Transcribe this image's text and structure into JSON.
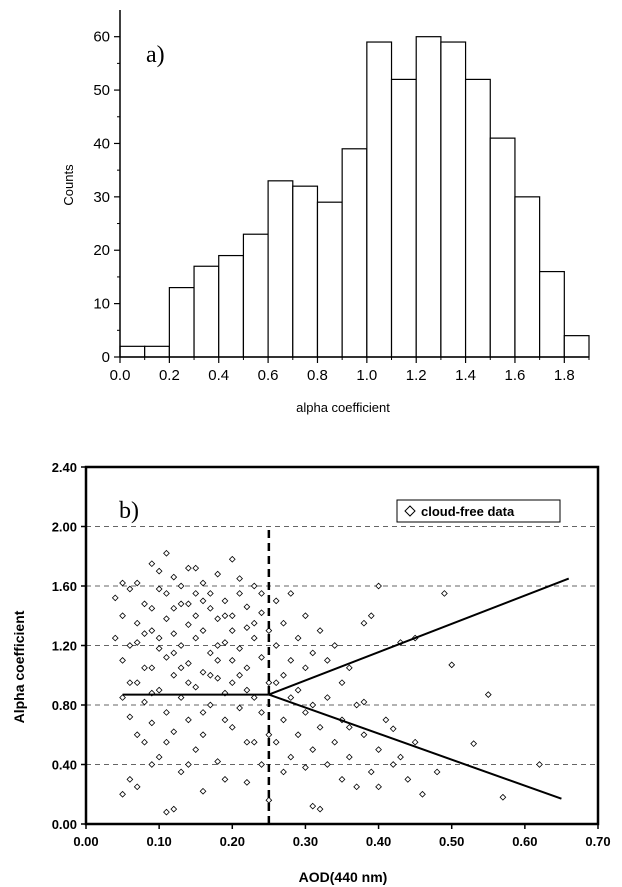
{
  "chart_data": [
    {
      "type": "bar",
      "panel_label": "a)",
      "xlabel": "alpha coefficient",
      "ylabel": "Counts",
      "xlim": [
        0.0,
        1.9
      ],
      "ylim": [
        0,
        65
      ],
      "bin_width": 0.1,
      "xticks": [
        0.0,
        0.2,
        0.4,
        0.6,
        0.8,
        1.0,
        1.2,
        1.4,
        1.6,
        1.8
      ],
      "xtick_labels": [
        "0.0",
        "0.2",
        "0.4",
        "0.6",
        "0.8",
        "1.0",
        "1.2",
        "1.4",
        "1.6",
        "1.8"
      ],
      "yticks": [
        0,
        10,
        20,
        30,
        40,
        50,
        60
      ],
      "ytick_labels": [
        "0",
        "10",
        "20",
        "30",
        "40",
        "50",
        "60"
      ],
      "bins_start": [
        0.0,
        0.1,
        0.2,
        0.3,
        0.4,
        0.5,
        0.6,
        0.7,
        0.8,
        0.9,
        1.0,
        1.1,
        1.2,
        1.3,
        1.4,
        1.5,
        1.6,
        1.7,
        1.8
      ],
      "values": [
        2,
        2,
        13,
        17,
        19,
        23,
        33,
        32,
        29,
        39,
        59,
        52,
        60,
        59,
        52,
        41,
        30,
        16,
        4
      ]
    },
    {
      "type": "scatter",
      "panel_label": "b)",
      "xlabel": "AOD(440 nm)",
      "ylabel": "Alpha coefficient",
      "xlim": [
        0.0,
        0.7
      ],
      "ylim": [
        0.0,
        2.4
      ],
      "grid": "horizontal dashed",
      "xticks": [
        0.0,
        0.1,
        0.2,
        0.3,
        0.4,
        0.5,
        0.6,
        0.7
      ],
      "xtick_labels": [
        "0.00",
        "0.10",
        "0.20",
        "0.30",
        "0.40",
        "0.50",
        "0.60",
        "0.70"
      ],
      "yticks": [
        0.0,
        0.4,
        0.8,
        1.2,
        1.6,
        2.0,
        2.4
      ],
      "ytick_labels": [
        "0.00",
        "0.40",
        "0.80",
        "1.20",
        "1.60",
        "2.00",
        "2.40"
      ],
      "legend": {
        "label": "cloud-free data",
        "position": "top-right"
      },
      "series": [
        {
          "name": "cloud-free data",
          "marker": "diamond-open",
          "points": [
            [
              0.04,
              1.52
            ],
            [
              0.05,
              1.4
            ],
            [
              0.05,
              1.1
            ],
            [
              0.06,
              0.95
            ],
            [
              0.06,
              0.72
            ],
            [
              0.07,
              1.62
            ],
            [
              0.07,
              1.35
            ],
            [
              0.07,
              1.22
            ],
            [
              0.08,
              1.05
            ],
            [
              0.08,
              0.82
            ],
            [
              0.08,
              0.55
            ],
            [
              0.09,
              1.75
            ],
            [
              0.09,
              1.45
            ],
            [
              0.09,
              1.3
            ],
            [
              0.09,
              0.68
            ],
            [
              0.1,
              1.58
            ],
            [
              0.1,
              1.18
            ],
            [
              0.1,
              0.9
            ],
            [
              0.1,
              0.45
            ],
            [
              0.11,
              1.82
            ],
            [
              0.11,
              1.38
            ],
            [
              0.11,
              1.12
            ],
            [
              0.11,
              0.75
            ],
            [
              0.12,
              1.66
            ],
            [
              0.12,
              1.28
            ],
            [
              0.12,
              1.0
            ],
            [
              0.12,
              0.62
            ],
            [
              0.13,
              1.48
            ],
            [
              0.13,
              1.2
            ],
            [
              0.13,
              0.85
            ],
            [
              0.13,
              0.35
            ],
            [
              0.14,
              1.72
            ],
            [
              0.14,
              1.34
            ],
            [
              0.14,
              1.08
            ],
            [
              0.14,
              0.7
            ],
            [
              0.15,
              1.55
            ],
            [
              0.15,
              1.25
            ],
            [
              0.15,
              0.92
            ],
            [
              0.15,
              0.5
            ],
            [
              0.16,
              1.62
            ],
            [
              0.16,
              1.3
            ],
            [
              0.16,
              1.02
            ],
            [
              0.16,
              0.6
            ],
            [
              0.17,
              1.45
            ],
            [
              0.17,
              1.15
            ],
            [
              0.17,
              0.8
            ],
            [
              0.18,
              1.68
            ],
            [
              0.18,
              1.38
            ],
            [
              0.18,
              0.98
            ],
            [
              0.18,
              0.42
            ],
            [
              0.19,
              1.5
            ],
            [
              0.19,
              1.22
            ],
            [
              0.19,
              0.88
            ],
            [
              0.2,
              1.78
            ],
            [
              0.2,
              1.4
            ],
            [
              0.2,
              1.1
            ],
            [
              0.2,
              0.65
            ],
            [
              0.21,
              1.55
            ],
            [
              0.21,
              1.18
            ],
            [
              0.21,
              0.78
            ],
            [
              0.22,
              1.46
            ],
            [
              0.22,
              1.05
            ],
            [
              0.22,
              0.55
            ],
            [
              0.23,
              1.6
            ],
            [
              0.23,
              1.25
            ],
            [
              0.23,
              0.85
            ],
            [
              0.24,
              1.42
            ],
            [
              0.24,
              1.12
            ],
            [
              0.24,
              0.4
            ],
            [
              0.25,
              1.3
            ],
            [
              0.25,
              0.95
            ],
            [
              0.25,
              0.6
            ],
            [
              0.04,
              1.25
            ],
            [
              0.05,
              0.85
            ],
            [
              0.06,
              1.58
            ],
            [
              0.06,
              0.3
            ],
            [
              0.07,
              0.95
            ],
            [
              0.08,
              1.48
            ],
            [
              0.09,
              1.05
            ],
            [
              0.1,
              1.7
            ],
            [
              0.11,
              0.55
            ],
            [
              0.12,
              1.45
            ],
            [
              0.13,
              1.6
            ],
            [
              0.14,
              0.95
            ],
            [
              0.15,
              1.4
            ],
            [
              0.16,
              0.75
            ],
            [
              0.17,
              1.55
            ],
            [
              0.18,
              1.2
            ],
            [
              0.19,
              0.7
            ],
            [
              0.2,
              1.3
            ],
            [
              0.21,
              1.65
            ],
            [
              0.22,
              0.9
            ],
            [
              0.23,
              1.35
            ],
            [
              0.24,
              0.75
            ],
            [
              0.05,
              1.62
            ],
            [
              0.07,
              0.6
            ],
            [
              0.09,
              0.88
            ],
            [
              0.11,
              1.55
            ],
            [
              0.13,
              1.05
            ],
            [
              0.15,
              1.72
            ],
            [
              0.17,
              1.0
            ],
            [
              0.19,
              1.4
            ],
            [
              0.21,
              1.0
            ],
            [
              0.23,
              0.55
            ],
            [
              0.06,
              1.2
            ],
            [
              0.08,
              1.28
            ],
            [
              0.1,
              1.25
            ],
            [
              0.12,
              1.15
            ],
            [
              0.14,
              1.48
            ],
            [
              0.16,
              1.5
            ],
            [
              0.18,
              1.1
            ],
            [
              0.2,
              0.95
            ],
            [
              0.22,
              1.32
            ],
            [
              0.24,
              1.55
            ],
            [
              0.05,
              0.2
            ],
            [
              0.07,
              0.25
            ],
            [
              0.11,
              0.08
            ],
            [
              0.12,
              0.1
            ],
            [
              0.16,
              0.22
            ],
            [
              0.19,
              0.3
            ],
            [
              0.22,
              0.28
            ],
            [
              0.25,
              0.16
            ],
            [
              0.09,
              0.4
            ],
            [
              0.14,
              0.4
            ],
            [
              0.26,
              1.5
            ],
            [
              0.26,
              1.2
            ],
            [
              0.26,
              0.95
            ],
            [
              0.26,
              0.55
            ],
            [
              0.27,
              1.35
            ],
            [
              0.27,
              1.0
            ],
            [
              0.27,
              0.7
            ],
            [
              0.27,
              0.35
            ],
            [
              0.28,
              1.55
            ],
            [
              0.28,
              1.1
            ],
            [
              0.28,
              0.85
            ],
            [
              0.28,
              0.45
            ],
            [
              0.29,
              1.25
            ],
            [
              0.29,
              0.9
            ],
            [
              0.29,
              0.6
            ],
            [
              0.3,
              1.4
            ],
            [
              0.3,
              1.05
            ],
            [
              0.3,
              0.75
            ],
            [
              0.3,
              0.38
            ],
            [
              0.31,
              1.15
            ],
            [
              0.31,
              0.8
            ],
            [
              0.31,
              0.5
            ],
            [
              0.32,
              1.3
            ],
            [
              0.32,
              0.65
            ],
            [
              0.32,
              0.1
            ],
            [
              0.33,
              1.1
            ],
            [
              0.33,
              0.85
            ],
            [
              0.33,
              0.4
            ],
            [
              0.34,
              1.2
            ],
            [
              0.34,
              0.55
            ],
            [
              0.35,
              0.95
            ],
            [
              0.35,
              0.7
            ],
            [
              0.35,
              0.3
            ],
            [
              0.36,
              1.05
            ],
            [
              0.36,
              0.45
            ],
            [
              0.37,
              0.8
            ],
            [
              0.37,
              0.25
            ],
            [
              0.38,
              1.35
            ],
            [
              0.38,
              0.6
            ],
            [
              0.39,
              1.4
            ],
            [
              0.39,
              0.35
            ],
            [
              0.4,
              1.6
            ],
            [
              0.4,
              0.5
            ],
            [
              0.4,
              0.25
            ],
            [
              0.41,
              0.7
            ],
            [
              0.42,
              0.4
            ],
            [
              0.43,
              1.22
            ],
            [
              0.43,
              0.45
            ],
            [
              0.44,
              0.3
            ],
            [
              0.45,
              1.25
            ],
            [
              0.45,
              0.55
            ],
            [
              0.46,
              0.2
            ],
            [
              0.48,
              0.35
            ],
            [
              0.49,
              1.55
            ],
            [
              0.5,
              1.07
            ],
            [
              0.53,
              0.54
            ],
            [
              0.55,
              0.87
            ],
            [
              0.57,
              0.18
            ],
            [
              0.62,
              0.4
            ],
            [
              0.31,
              0.12
            ],
            [
              0.36,
              0.65
            ],
            [
              0.38,
              0.82
            ],
            [
              0.42,
              0.64
            ]
          ]
        }
      ],
      "annotations": {
        "cutoff_line": {
          "style": "dashed vertical",
          "x": 0.25,
          "y_range": [
            0.0,
            2.0
          ]
        },
        "flat_line": {
          "style": "solid",
          "x_range": [
            0.05,
            0.25
          ],
          "y": 0.87
        },
        "upper_branch": {
          "style": "solid",
          "from": [
            0.25,
            0.87
          ],
          "to": [
            0.66,
            1.65
          ]
        },
        "lower_branch": {
          "style": "solid",
          "from": [
            0.25,
            0.87
          ],
          "to": [
            0.65,
            0.17
          ]
        }
      }
    }
  ]
}
